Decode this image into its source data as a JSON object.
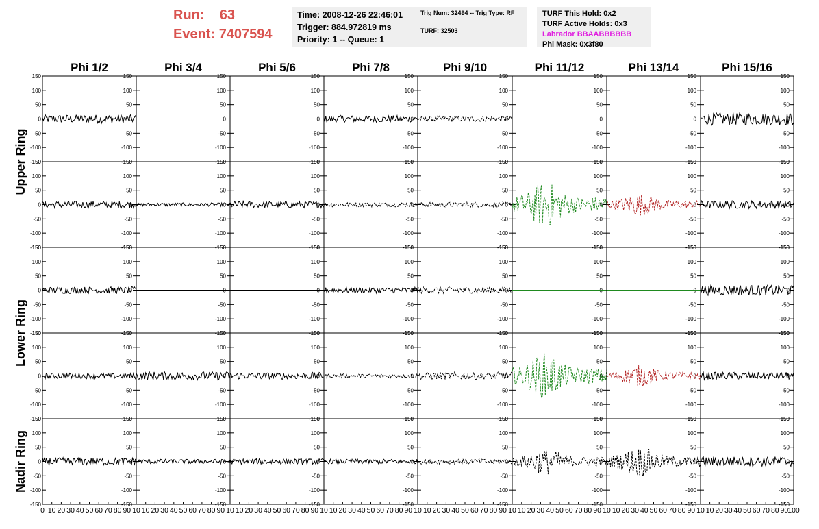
{
  "header": {
    "run_label": "Run:",
    "run_value": "63",
    "event_label": "Event:",
    "event_value": "7407594",
    "time": "Time: 2008-12-26 22:46:01",
    "trigger": "Trigger: 884.972819 ms",
    "priority": "Priority: 1 -- Queue: 1",
    "trig_num": "Trig Num: 32494 -- Trig Type: RF",
    "turf": "TURF: 32503",
    "turf_hold": "TURF This Hold: 0x2",
    "turf_active": "TURF Active Holds: 0x3",
    "labrador": "Labrador BBAABBBBBB",
    "phi_mask": "Phi Mask: 0x3f80"
  },
  "colors": {
    "header_red": "#d9534f",
    "labrador_magenta": "#e01ee0",
    "trace_black": "#000000",
    "trace_green": "#1f8a1f",
    "trace_red": "#b22222",
    "panel_bg": "#efefef"
  },
  "chart_data": {
    "type": "line",
    "columns": [
      "Phi 1/2",
      "Phi 3/4",
      "Phi 5/6",
      "Phi 7/8",
      "Phi 9/10",
      "Phi 11/12",
      "Phi 13/14",
      "Phi 15/16"
    ],
    "rings": [
      "Upper Ring",
      "Lower Ring",
      "Nadir Ring"
    ],
    "ylim": [
      -150,
      150
    ],
    "xlim": [
      0,
      100
    ],
    "y_ticks": [
      150,
      100,
      50,
      0,
      -50,
      -100,
      -150
    ],
    "y_tick_labels": [
      "150",
      "100",
      "50",
      "0",
      "-50",
      "-100",
      "-150"
    ],
    "x_ticks": [
      0,
      10,
      20,
      30,
      40,
      50,
      60,
      70,
      80,
      90,
      100
    ],
    "x_tick_labels": [
      "0",
      "10",
      "20",
      "30",
      "40",
      "50",
      "60",
      "70",
      "80",
      "90",
      "100"
    ],
    "x_tick_labels_first": [
      "0",
      "10",
      "20",
      "30",
      "40",
      "50",
      "60",
      "70",
      "80",
      "90",
      "10"
    ],
    "x_tick_labels_mid": [
      "10",
      "20",
      "30",
      "40",
      "50",
      "60",
      "70",
      "80",
      "90",
      "10"
    ],
    "x_tick_labels_last": [
      "10",
      "20",
      "30",
      "40",
      "50",
      "60",
      "70",
      "80",
      "90",
      "100"
    ],
    "panels": [
      [
        {
          "amp": 15,
          "style": "solid",
          "color": "#000000"
        },
        {
          "amp": 0,
          "style": "solid",
          "color": "#000000"
        },
        {
          "amp": 0,
          "style": "solid",
          "color": "#000000"
        },
        {
          "amp": 12,
          "style": "solid",
          "color": "#000000"
        },
        {
          "amp": 10,
          "style": "dashed",
          "color": "#000000"
        },
        {
          "amp": 0,
          "style": "solid",
          "color": "#1f8a1f"
        },
        {
          "amp": 0,
          "style": "solid",
          "color": "#000000"
        },
        {
          "amp": 22,
          "style": "solid",
          "color": "#000000"
        }
      ],
      [
        {
          "amp": 12,
          "style": "solid",
          "color": "#000000"
        },
        {
          "amp": 6,
          "style": "solid",
          "color": "#000000"
        },
        {
          "amp": 12,
          "style": "solid",
          "color": "#000000"
        },
        {
          "amp": 8,
          "style": "dashed",
          "color": "#000000"
        },
        {
          "amp": 9,
          "style": "dashed",
          "color": "#000000"
        },
        {
          "amp": 60,
          "style": "dashed",
          "color": "#1f8a1f"
        },
        {
          "amp": 30,
          "style": "dashed",
          "color": "#b22222"
        },
        {
          "amp": 14,
          "style": "solid",
          "color": "#000000"
        }
      ],
      [
        {
          "amp": 12,
          "style": "solid",
          "color": "#000000"
        },
        {
          "amp": 0,
          "style": "solid",
          "color": "#000000"
        },
        {
          "amp": 0,
          "style": "solid",
          "color": "#000000"
        },
        {
          "amp": 10,
          "style": "solid",
          "color": "#000000"
        },
        {
          "amp": 12,
          "style": "dashed",
          "color": "#000000"
        },
        {
          "amp": 0,
          "style": "solid",
          "color": "#1f8a1f"
        },
        {
          "amp": 0,
          "style": "solid",
          "color": "#1f8a1f"
        },
        {
          "amp": 18,
          "style": "solid",
          "color": "#000000"
        }
      ],
      [
        {
          "amp": 10,
          "style": "solid",
          "color": "#000000"
        },
        {
          "amp": 15,
          "style": "solid",
          "color": "#000000"
        },
        {
          "amp": 12,
          "style": "solid",
          "color": "#000000"
        },
        {
          "amp": 7,
          "style": "dashed",
          "color": "#000000"
        },
        {
          "amp": 13,
          "style": "dashed",
          "color": "#000000"
        },
        {
          "amp": 60,
          "style": "dashed",
          "color": "#1f8a1f"
        },
        {
          "amp": 28,
          "style": "dashed",
          "color": "#b22222"
        },
        {
          "amp": 13,
          "style": "solid",
          "color": "#000000"
        }
      ],
      [
        {
          "amp": 14,
          "style": "solid",
          "color": "#000000"
        },
        {
          "amp": 8,
          "style": "solid",
          "color": "#000000"
        },
        {
          "amp": 10,
          "style": "solid",
          "color": "#000000"
        },
        {
          "amp": 8,
          "style": "solid",
          "color": "#000000"
        },
        {
          "amp": 9,
          "style": "dashed",
          "color": "#000000"
        },
        {
          "amp": 35,
          "style": "dashed",
          "color": "#000000"
        },
        {
          "amp": 40,
          "style": "dashed",
          "color": "#000000"
        },
        {
          "amp": 18,
          "style": "solid",
          "color": "#000000"
        }
      ]
    ]
  }
}
